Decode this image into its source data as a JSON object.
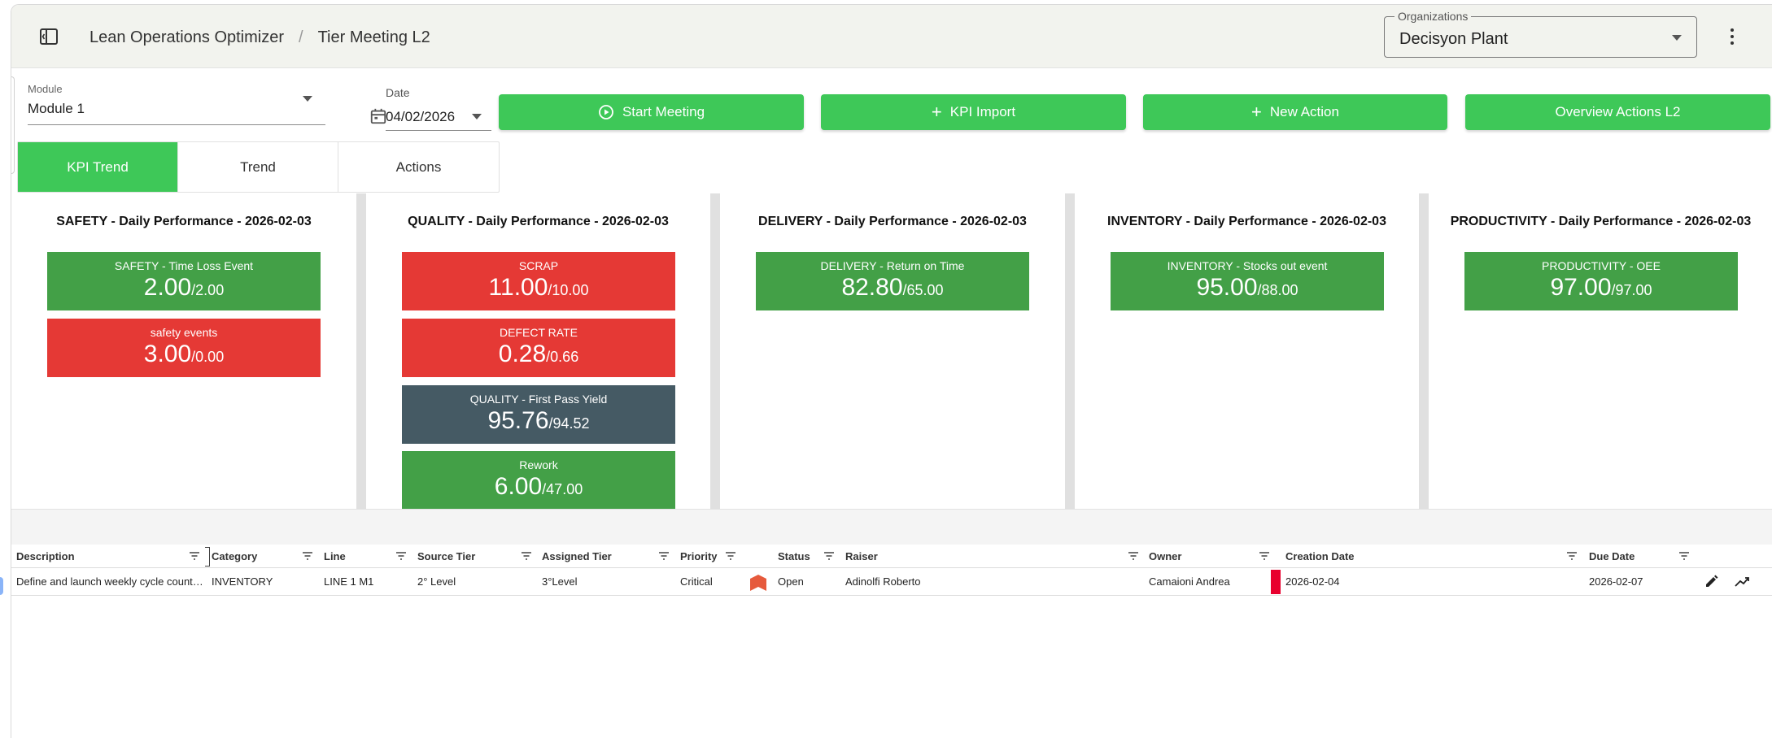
{
  "header": {
    "breadcrumb": [
      "Lean Operations Optimizer",
      "/",
      "Tier Meeting L2"
    ],
    "organization": {
      "label": "Organizations",
      "value": "Decisyon Plant"
    }
  },
  "toolbar": {
    "module": {
      "label": "Module",
      "value": "Module 1"
    },
    "date": {
      "label": "Date",
      "value": "04/02/2026"
    },
    "buttons": {
      "start_meeting": "Start Meeting",
      "kpi_import": "KPI Import",
      "new_action": "New Action",
      "overview_actions": "Overview Actions L2"
    }
  },
  "tabs": [
    "KPI Trend",
    "Trend",
    "Actions"
  ],
  "colors": {
    "green": "#43a047",
    "red": "#e53935",
    "slate": "#455a64",
    "accent": "#3ec858"
  },
  "kpi_columns": [
    {
      "title": "SAFETY - Daily Performance - 2026-02-03",
      "cards": [
        {
          "name": "SAFETY - Time Loss Event",
          "value": "2.00",
          "target": "/2.00",
          "status": "green"
        },
        {
          "name": "safety events",
          "value": "3.00",
          "target": "/0.00",
          "status": "red"
        }
      ]
    },
    {
      "title": "QUALITY - Daily Performance - 2026-02-03",
      "cards": [
        {
          "name": "SCRAP",
          "value": "11.00",
          "target": "/10.00",
          "status": "red"
        },
        {
          "name": "DEFECT RATE",
          "value": "0.28",
          "target": "/0.66",
          "status": "red"
        },
        {
          "name": "QUALITY - First Pass Yield",
          "value": "95.76",
          "target": "/94.52",
          "status": "slate"
        },
        {
          "name": "Rework",
          "value": "6.00",
          "target": "/47.00",
          "status": "green"
        }
      ]
    },
    {
      "title": "DELIVERY - Daily Performance - 2026-02-03",
      "cards": [
        {
          "name": "DELIVERY - Return on Time",
          "value": "82.80",
          "target": "/65.00",
          "status": "green"
        }
      ]
    },
    {
      "title": "INVENTORY - Daily Performance - 2026-02-03",
      "cards": [
        {
          "name": "INVENTORY - Stocks out event",
          "value": "95.00",
          "target": "/88.00",
          "status": "green"
        }
      ]
    },
    {
      "title": "PRODUCTIVITY - Daily Performance - 2026-02-03",
      "cards": [
        {
          "name": "PRODUCTIVITY - OEE",
          "value": "97.00",
          "target": "/97.00",
          "status": "green"
        }
      ]
    }
  ],
  "table": {
    "headers": [
      "Description",
      "Category",
      "Line",
      "Source Tier",
      "Assigned Tier",
      "Priority",
      "Status",
      "Raiser",
      "Owner",
      "Creation Date",
      "Due Date"
    ],
    "rows": [
      {
        "description": "Define and launch weekly cycle count …",
        "category": "INVENTORY",
        "line": "LINE 1 M1",
        "source_tier": "2° Level",
        "assigned_tier": "3°Level",
        "priority": "Critical",
        "status": "Open",
        "raiser": "Adinolfi Roberto",
        "owner": "Camaioni Andrea",
        "creation_date": "2026-02-04",
        "due_date": "2026-02-07"
      }
    ]
  }
}
